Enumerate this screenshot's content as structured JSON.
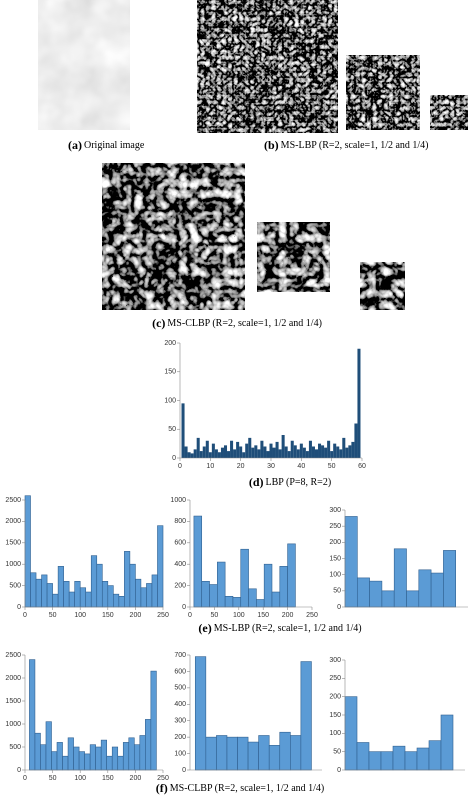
{
  "figure": {
    "panels": [
      {
        "label": "(a)",
        "caption": "Original image"
      },
      {
        "label": "(b)",
        "caption": "MS-LBP (R=2, scale=1, 1/2 and 1/4)"
      },
      {
        "label": "(c)",
        "caption": "MS-CLBP (R=2, scale=1, 1/2 and 1/4)"
      },
      {
        "label": "(d)",
        "caption": "LBP (P=8, R=2)"
      },
      {
        "label": "(e)",
        "caption": "MS-LBP (R=2, scale=1, 1/2 and 1/4)"
      },
      {
        "label": "(f)",
        "caption": "MS-CLBP (R=2, scale=1, 1/2 and 1/4)"
      }
    ]
  },
  "chart_data": [
    {
      "type": "histogram",
      "color": "#1f4e79",
      "bins": [
        0.5,
        1.5,
        2.5,
        3.5,
        4.5,
        5.5,
        6.5,
        7.5,
        8.5,
        9.5,
        10.5,
        11.5,
        12.5,
        13.5,
        14.5,
        15.5,
        16.5,
        17.5,
        18.5,
        19.5,
        20.5,
        21.5,
        22.5,
        23.5,
        24.5,
        25.5,
        26.5,
        27.5,
        28.5,
        29.5,
        30.5,
        31.5,
        32.5,
        33.5,
        34.5,
        35.5,
        36.5,
        37.5,
        38.5,
        39.5,
        40.5,
        41.5,
        42.5,
        43.5,
        44.5,
        45.5,
        46.5,
        47.5,
        48.5,
        49.5,
        50.5,
        51.5,
        52.5,
        53.5,
        54.5,
        55.5,
        56.5,
        57.5,
        58.5,
        59.5
      ],
      "values": [
        95,
        20,
        10,
        8,
        15,
        35,
        12,
        20,
        30,
        10,
        25,
        15,
        10,
        18,
        22,
        12,
        30,
        15,
        28,
        20,
        10,
        25,
        35,
        18,
        22,
        15,
        30,
        20,
        12,
        25,
        18,
        28,
        15,
        40,
        20,
        12,
        30,
        22,
        15,
        25,
        18,
        12,
        30,
        20,
        15,
        25,
        22,
        18,
        30,
        12,
        25,
        20,
        15,
        35,
        18,
        22,
        28,
        60,
        190
      ],
      "xlim": [
        0,
        60
      ],
      "xticks": [
        0,
        10,
        20,
        30,
        40,
        50,
        60
      ],
      "ylim": [
        0,
        200
      ],
      "yticks": [
        0,
        50,
        100,
        150,
        200
      ]
    },
    {
      "type": "histogram",
      "color": "#5b9bd5",
      "bins": [
        0,
        10,
        20,
        30,
        40,
        50,
        60,
        70,
        80,
        90,
        100,
        110,
        120,
        130,
        140,
        150,
        160,
        170,
        180,
        190,
        200,
        210,
        220,
        230,
        240,
        250
      ],
      "values": [
        2600,
        800,
        650,
        750,
        550,
        300,
        950,
        600,
        350,
        600,
        450,
        350,
        1200,
        1000,
        600,
        500,
        300,
        250,
        1300,
        1000,
        650,
        450,
        550,
        750,
        1900
      ],
      "xlim": [
        0,
        250
      ],
      "xticks": [
        0,
        50,
        100,
        150,
        200,
        250
      ],
      "ylim": [
        0,
        2500
      ],
      "yticks": [
        0,
        500,
        1000,
        1500,
        2000,
        2500
      ]
    },
    {
      "type": "histogram",
      "color": "#5b9bd5",
      "bins": [
        8,
        24,
        40,
        56,
        72,
        88,
        104,
        120,
        136,
        152,
        168,
        184,
        200,
        216
      ],
      "values": [
        850,
        240,
        210,
        420,
        100,
        90,
        540,
        170,
        70,
        400,
        140,
        380,
        590
      ],
      "xlim": [
        0,
        250
      ],
      "xticks": [
        0,
        50,
        100,
        150,
        200,
        250
      ],
      "ylim": [
        0,
        1000
      ],
      "yticks": [
        0,
        200,
        400,
        600,
        800,
        1000
      ]
    },
    {
      "type": "histogram",
      "color": "#5b9bd5",
      "bins": [
        0,
        25,
        50,
        75,
        100,
        125,
        150,
        175,
        200,
        225
      ],
      "values": [
        280,
        90,
        80,
        50,
        180,
        50,
        115,
        105,
        175
      ],
      "xlim": [
        0,
        250
      ],
      "ylim": [
        0,
        300
      ],
      "yticks": [
        0,
        50,
        100,
        150,
        200,
        250,
        300
      ]
    },
    {
      "type": "histogram",
      "color": "#5b9bd5",
      "bins": [
        8,
        18,
        28,
        38,
        48,
        58,
        68,
        78,
        88,
        98,
        108,
        118,
        128,
        138,
        148,
        158,
        168,
        178,
        188,
        198,
        208,
        218,
        228,
        238
      ],
      "values": [
        2400,
        800,
        550,
        1050,
        400,
        600,
        300,
        700,
        500,
        400,
        350,
        550,
        500,
        650,
        300,
        500,
        300,
        600,
        700,
        550,
        750,
        1100,
        2150
      ],
      "xlim": [
        0,
        250
      ],
      "xticks": [
        0,
        50,
        100,
        150,
        200,
        250
      ],
      "ylim": [
        0,
        2500
      ],
      "yticks": [
        0,
        500,
        1000,
        1500,
        2000,
        2500
      ]
    },
    {
      "type": "histogram",
      "color": "#5b9bd5",
      "bins": [
        10,
        30,
        50,
        70,
        90,
        110,
        130,
        150,
        170,
        190,
        210,
        230
      ],
      "values": [
        690,
        200,
        210,
        200,
        200,
        170,
        210,
        150,
        230,
        210,
        660
      ],
      "xlim": [
        0,
        250
      ],
      "ylim": [
        0,
        700
      ],
      "yticks": [
        0,
        100,
        200,
        300,
        400,
        500,
        600,
        700
      ]
    },
    {
      "type": "histogram",
      "color": "#5b9bd5",
      "bins": [
        0,
        25,
        50,
        75,
        100,
        125,
        150,
        175,
        200,
        225
      ],
      "values": [
        200,
        75,
        50,
        50,
        65,
        50,
        60,
        80,
        150
      ],
      "xlim": [
        0,
        250
      ],
      "ylim": [
        0,
        300
      ],
      "yticks": [
        0,
        50,
        100,
        150,
        200,
        250,
        300
      ]
    }
  ]
}
